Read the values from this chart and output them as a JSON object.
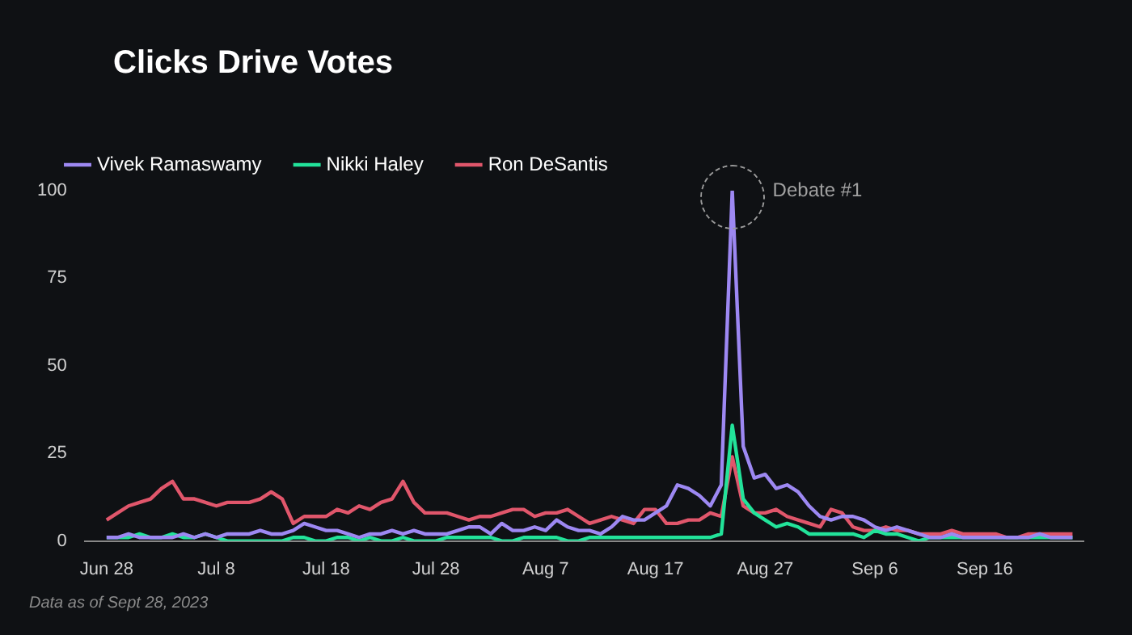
{
  "chart_data": {
    "type": "line",
    "title": "Clicks Drive Votes",
    "x": [
      "--06-28",
      "--06-29",
      "--06-30",
      "--07-01",
      "--07-02",
      "--07-03",
      "--07-04",
      "--07-05",
      "--07-06",
      "--07-07",
      "--07-08",
      "--07-09",
      "--07-10",
      "--07-11",
      "--07-12",
      "--07-13",
      "--07-14",
      "--07-15",
      "--07-16",
      "--07-17",
      "--07-18",
      "--07-19",
      "--07-20",
      "--07-21",
      "--07-22",
      "--07-23",
      "--07-24",
      "--07-25",
      "--07-26",
      "--07-27",
      "--07-28",
      "--07-29",
      "--07-30",
      "--07-31",
      "--08-01",
      "--08-02",
      "--08-03",
      "--08-04",
      "--08-05",
      "--08-06",
      "--08-07",
      "--08-08",
      "--08-09",
      "--08-10",
      "--08-11",
      "--08-12",
      "--08-13",
      "--08-14",
      "--08-15",
      "--08-16",
      "--08-17",
      "--08-18",
      "--08-19",
      "--08-20",
      "--08-21",
      "--08-22",
      "--08-23",
      "--08-24",
      "--08-25",
      "--08-26",
      "--08-27",
      "--08-28",
      "--08-29",
      "--08-30",
      "--08-31",
      "--09-01",
      "--09-02",
      "--09-03",
      "--09-04",
      "--09-05",
      "--09-06",
      "--09-07",
      "--09-08",
      "--09-09",
      "--09-10",
      "--09-11",
      "--09-12",
      "--09-13",
      "--09-14",
      "--09-15",
      "--09-16",
      "--09-17",
      "--09-18",
      "--09-19",
      "--09-20",
      "--09-21",
      "--09-22",
      "--09-23",
      "--09-24"
    ],
    "series": [
      {
        "name": "Vivek Ramaswamy",
        "color": "#9d88f2",
        "values": [
          1,
          1,
          2,
          1,
          1,
          1,
          1,
          2,
          1,
          2,
          1,
          2,
          2,
          2,
          3,
          2,
          2,
          3,
          5,
          4,
          3,
          3,
          2,
          1,
          2,
          2,
          3,
          2,
          3,
          2,
          2,
          2,
          3,
          4,
          4,
          2,
          5,
          3,
          3,
          4,
          3,
          6,
          4,
          3,
          3,
          2,
          4,
          7,
          6,
          6,
          8,
          10,
          16,
          15,
          13,
          10,
          16,
          100,
          27,
          18,
          19,
          15,
          16,
          14,
          10,
          7,
          6,
          7,
          7,
          6,
          4,
          3,
          4,
          3,
          2,
          1,
          1,
          2,
          1,
          1,
          1,
          1,
          1,
          1,
          1,
          2,
          1,
          1,
          1
        ]
      },
      {
        "name": "Nikki Haley",
        "color": "#22e39a",
        "values": [
          1,
          1,
          1,
          2,
          1,
          1,
          2,
          1,
          1,
          2,
          1,
          0,
          0,
          0,
          0,
          0,
          0,
          1,
          1,
          0,
          0,
          1,
          1,
          0,
          1,
          0,
          0,
          1,
          0,
          0,
          0,
          1,
          1,
          1,
          1,
          1,
          0,
          0,
          1,
          1,
          1,
          1,
          0,
          0,
          1,
          1,
          1,
          1,
          1,
          1,
          1,
          1,
          1,
          1,
          1,
          1,
          2,
          33,
          12,
          8,
          6,
          4,
          5,
          4,
          2,
          2,
          2,
          2,
          2,
          1,
          3,
          2,
          2,
          1,
          0,
          1,
          1,
          1,
          1,
          1,
          1,
          1,
          1,
          1,
          1,
          1,
          1,
          1,
          1
        ]
      },
      {
        "name": "Ron DeSantis",
        "color": "#e0566b",
        "values": [
          6,
          8,
          10,
          11,
          12,
          15,
          17,
          12,
          12,
          11,
          10,
          11,
          11,
          11,
          12,
          14,
          12,
          5,
          7,
          7,
          7,
          9,
          8,
          10,
          9,
          11,
          12,
          17,
          11,
          8,
          8,
          8,
          7,
          6,
          7,
          7,
          8,
          9,
          9,
          7,
          8,
          8,
          9,
          7,
          5,
          6,
          7,
          6,
          5,
          9,
          9,
          5,
          5,
          6,
          6,
          8,
          7,
          24,
          10,
          8,
          8,
          9,
          7,
          6,
          5,
          4,
          9,
          8,
          4,
          3,
          3,
          4,
          3,
          3,
          2,
          2,
          2,
          3,
          2,
          2,
          2,
          2,
          1,
          1,
          2,
          2,
          2,
          2,
          2
        ]
      }
    ],
    "xlim": [
      "--06-26",
      "--09-25"
    ],
    "xticks": [
      {
        "value": "--06-28",
        "label": "Jun 28"
      },
      {
        "value": "--07-08",
        "label": "Jul 8"
      },
      {
        "value": "--07-18",
        "label": "Jul 18"
      },
      {
        "value": "--07-28",
        "label": "Jul 28"
      },
      {
        "value": "--08-07",
        "label": "Aug 7"
      },
      {
        "value": "--08-17",
        "label": "Aug 17"
      },
      {
        "value": "--08-27",
        "label": "Aug 27"
      },
      {
        "value": "--09-06",
        "label": "Sep 6"
      },
      {
        "value": "--09-16",
        "label": "Sep 16"
      }
    ],
    "ylim": [
      0,
      100
    ],
    "yticks": [
      0,
      25,
      50,
      75,
      100
    ],
    "legend": "top left",
    "marker": "none",
    "line_style": "solid",
    "annotations": [
      {
        "text": "Debate #1",
        "x": "--08-24",
        "y": 100
      },
      "Data as of Sept 28, 2023"
    ]
  }
}
